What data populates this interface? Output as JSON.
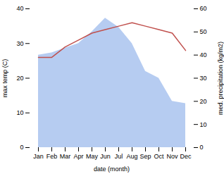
{
  "chart_data": {
    "type": "line",
    "xlabel": "date (month)",
    "ylabel": "max temp (C)",
    "y2label": "med. precipitation (kg/m2)",
    "categories": [
      "Jan",
      "Feb",
      "Mar",
      "Apr",
      "May",
      "Jun",
      "Jul",
      "Aug",
      "Sep",
      "Oct",
      "Nov",
      "Dec"
    ],
    "series": [
      {
        "type": "area",
        "axis": "y2",
        "color": "#aec6f0",
        "values": [
          40,
          41,
          43,
          45,
          50,
          56,
          52,
          45,
          33,
          30,
          20,
          19
        ]
      },
      {
        "type": "line",
        "color": "#c0504d",
        "values": [
          26,
          26,
          29,
          31,
          33,
          34,
          35,
          36,
          35,
          34,
          33,
          28
        ]
      }
    ],
    "ylim": [
      0,
      40
    ],
    "yticks": [
      0,
      10,
      20,
      30,
      40
    ],
    "y2lim": [
      0,
      60
    ],
    "y2ticks": [
      0,
      10,
      20,
      30,
      40,
      50,
      60
    ],
    "grid": false
  }
}
